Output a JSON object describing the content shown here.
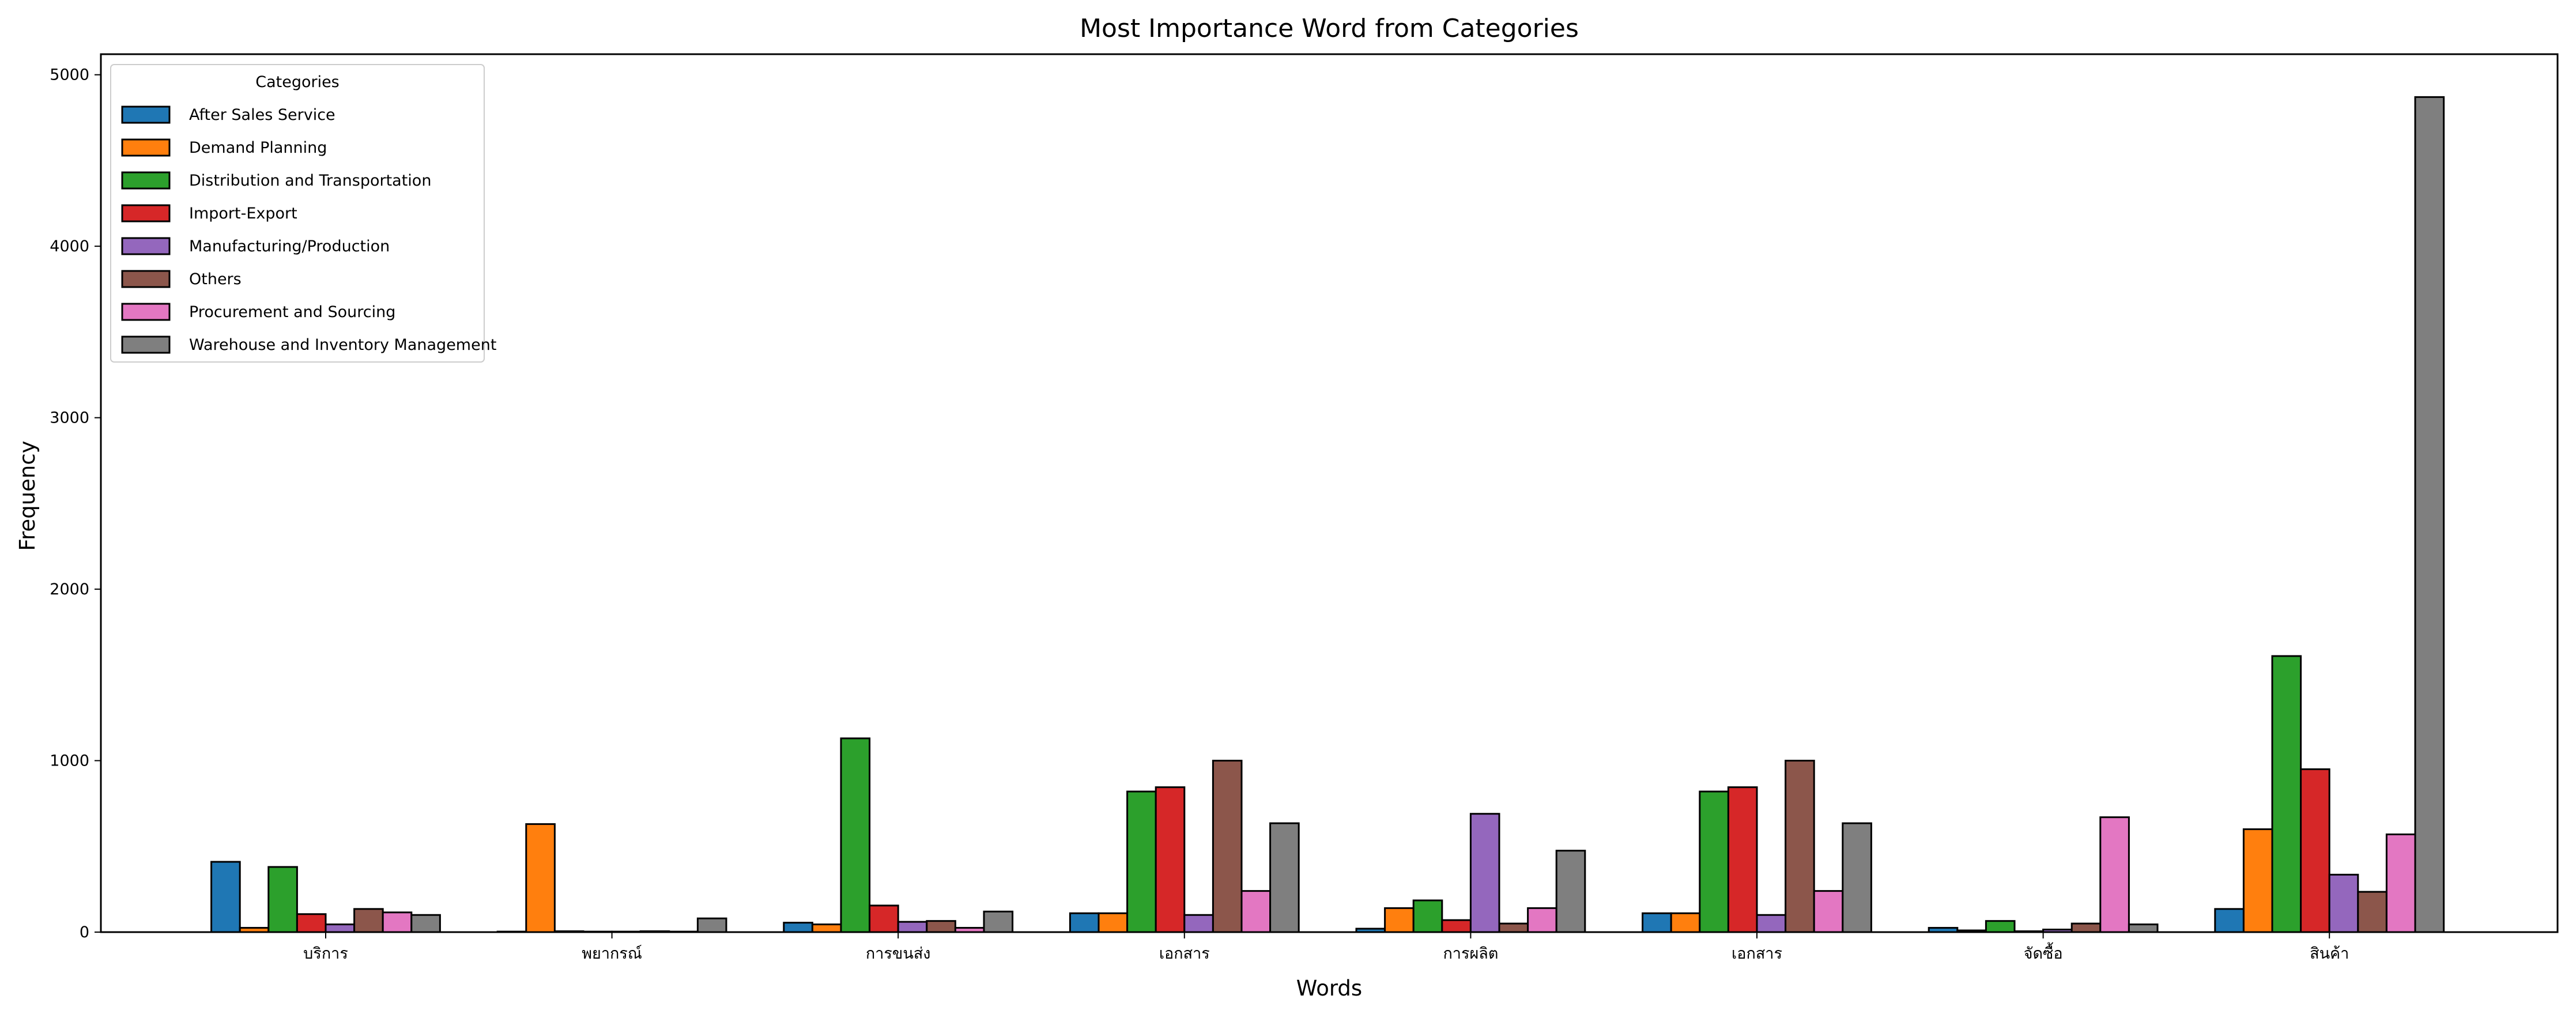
{
  "chart_data": {
    "type": "bar",
    "title": "Most Importance Word from Categories",
    "xlabel": "Words",
    "ylabel": "Frequency",
    "ylim": [
      0,
      5120
    ],
    "yticks": [
      0,
      1000,
      2000,
      3000,
      4000,
      5000
    ],
    "legend_title": "Categories",
    "legend_position": "top-left",
    "grid": false,
    "categories": [
      "บริการ",
      "พยากรณ์",
      "การขนส่ง",
      "เอกสาร",
      "การผลิต",
      "เอกสาร",
      "จัดซื้อ",
      "สินค้า"
    ],
    "series": [
      {
        "name": "After Sales Service",
        "color": "#1f77b4",
        "values": [
          410,
          3,
          55,
          110,
          20,
          110,
          25,
          135
        ]
      },
      {
        "name": "Demand Planning",
        "color": "#ff7f0e",
        "values": [
          25,
          630,
          45,
          110,
          140,
          110,
          10,
          600
        ]
      },
      {
        "name": "Distribution and Transportation",
        "color": "#2ca02c",
        "values": [
          380,
          5,
          1130,
          820,
          185,
          820,
          65,
          1610
        ]
      },
      {
        "name": "Import-Export",
        "color": "#d62728",
        "values": [
          105,
          3,
          155,
          845,
          70,
          845,
          5,
          950
        ]
      },
      {
        "name": "Manufacturing/Production",
        "color": "#9467bd",
        "values": [
          45,
          3,
          60,
          100,
          690,
          100,
          15,
          335
        ]
      },
      {
        "name": "Others",
        "color": "#8c564b",
        "values": [
          135,
          5,
          65,
          1000,
          50,
          1000,
          50,
          235
        ]
      },
      {
        "name": "Procurement and Sourcing",
        "color": "#e377c2",
        "values": [
          115,
          3,
          25,
          240,
          140,
          240,
          670,
          570
        ]
      },
      {
        "name": "Warehouse and Inventory Management",
        "color": "#7f7f7f",
        "values": [
          100,
          80,
          120,
          635,
          475,
          635,
          45,
          4870
        ]
      }
    ]
  }
}
